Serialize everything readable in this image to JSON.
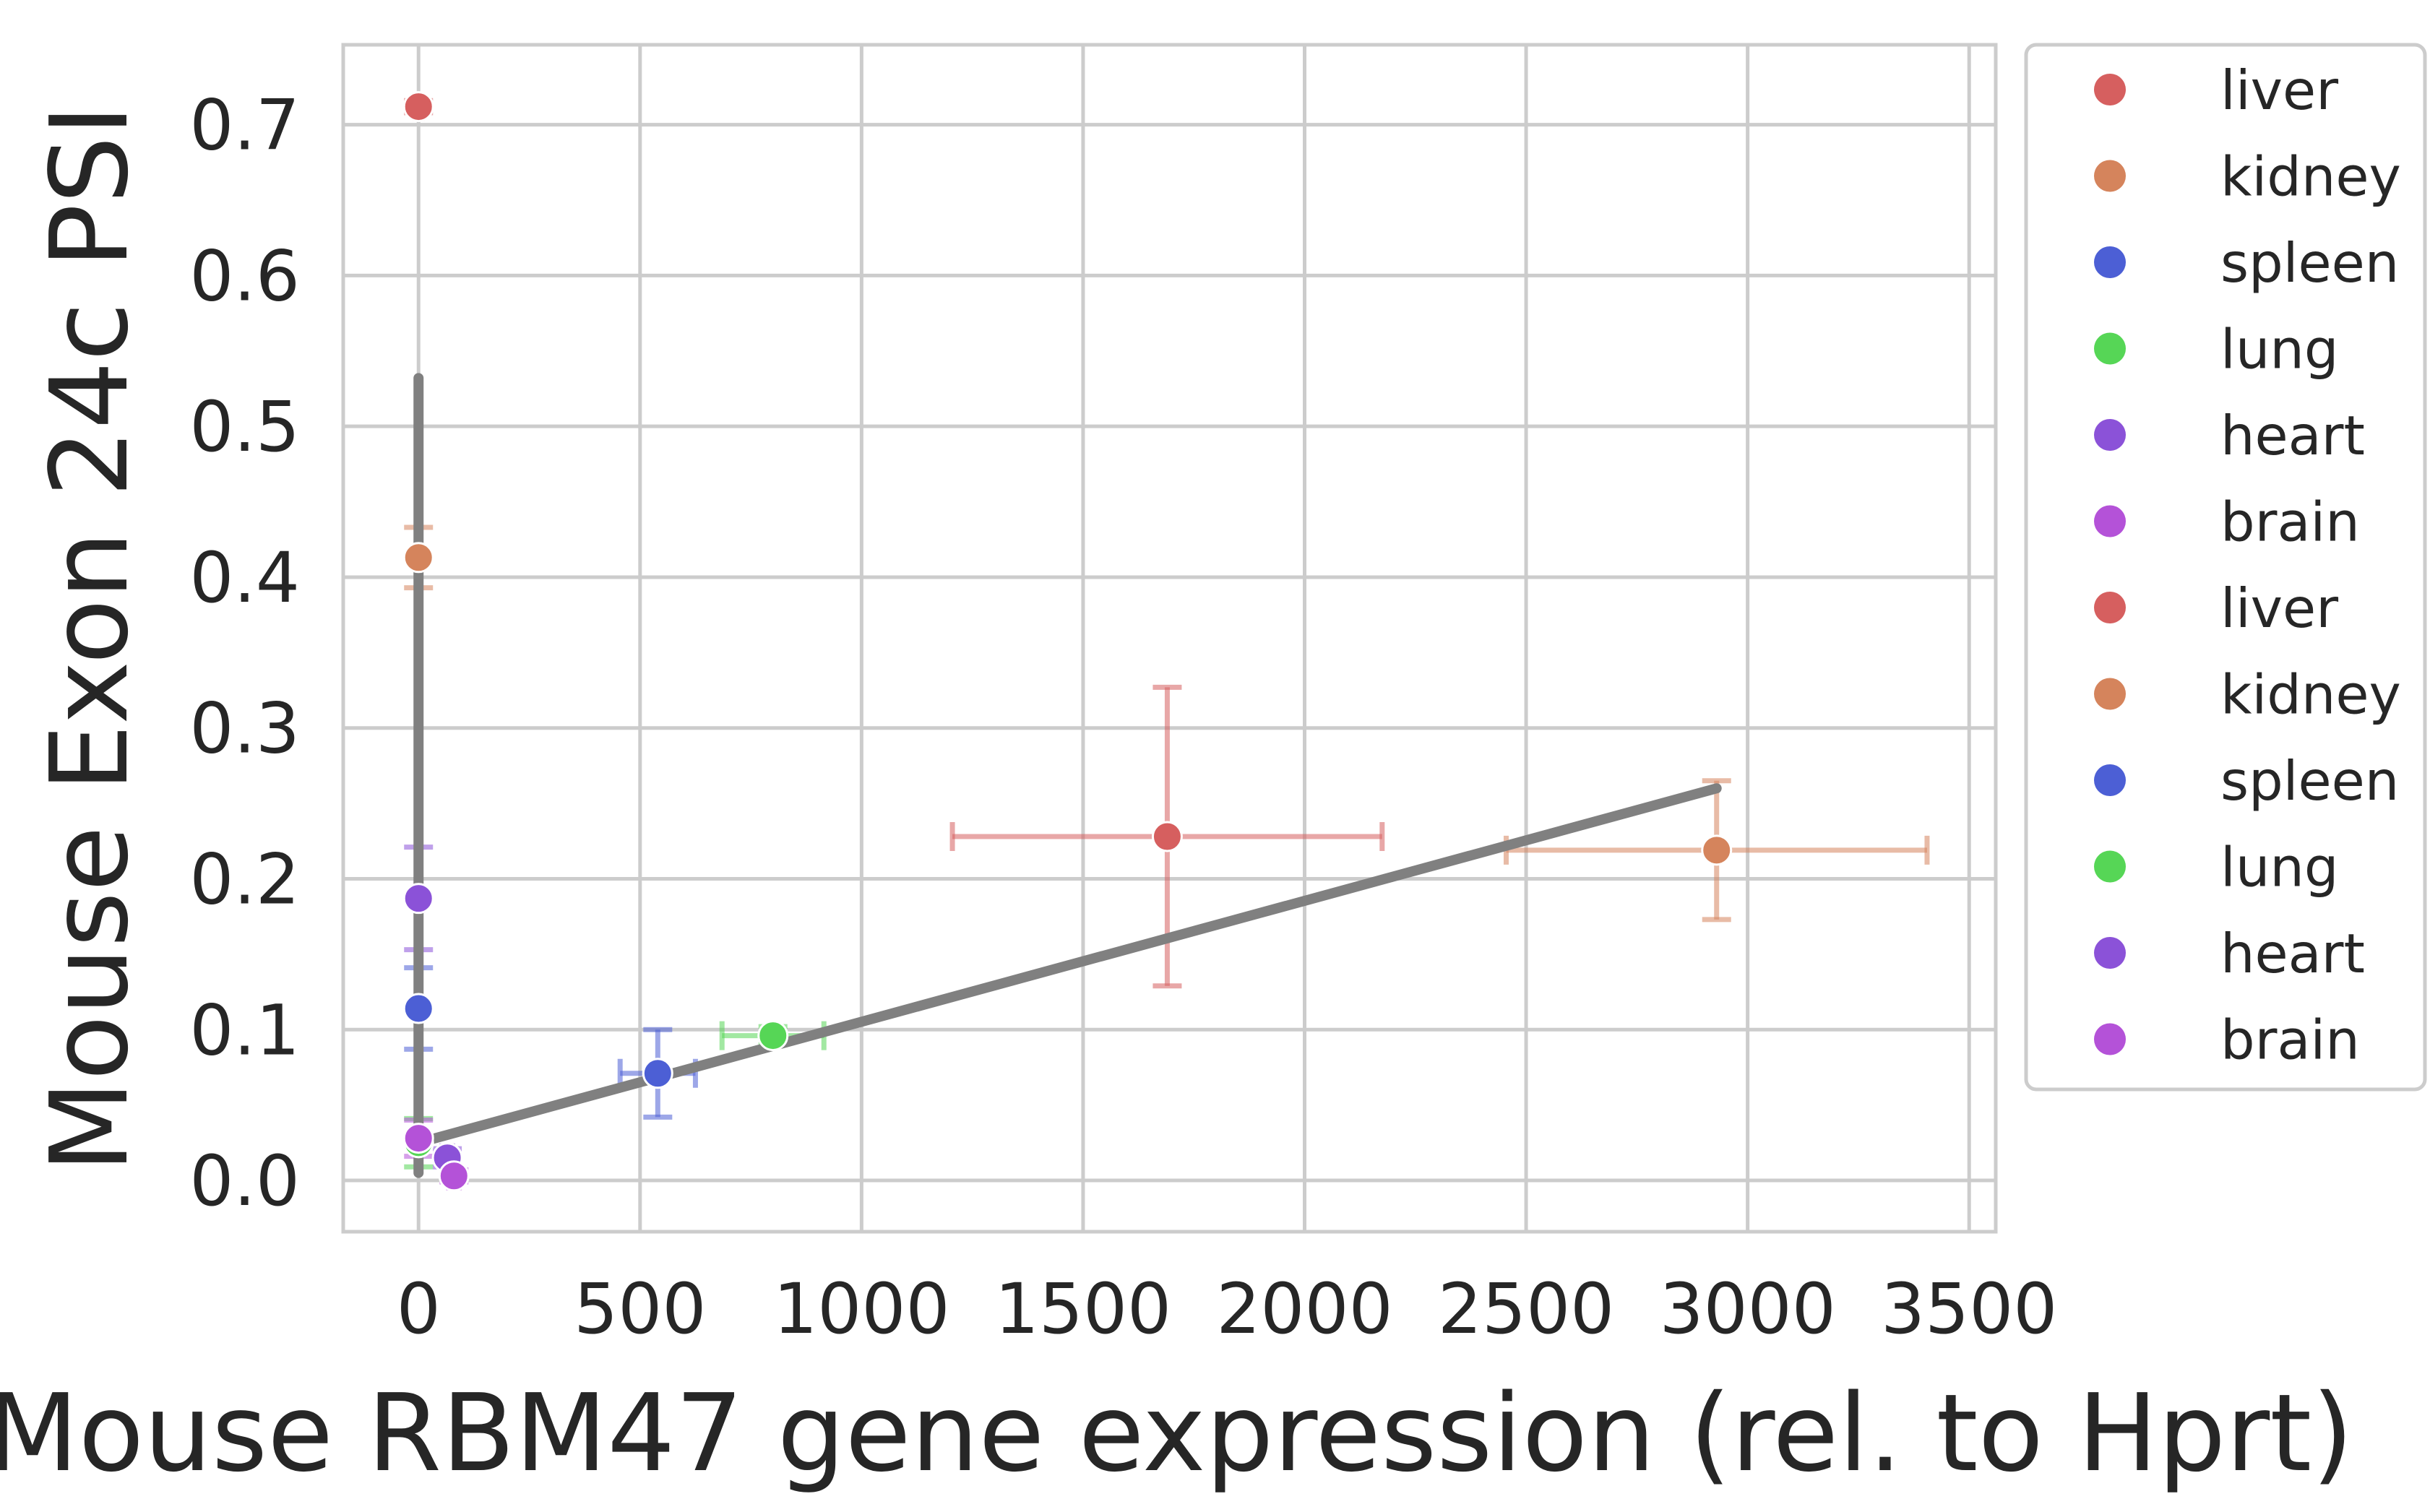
{
  "chart_data": {
    "type": "scatter",
    "title": "",
    "xlabel": "Mouse RBM47 gene expression (rel. to Hprt)",
    "ylabel": "Mouse Exon 24c PSI",
    "xlim": [
      -170,
      3560
    ],
    "ylim": [
      -0.034,
      0.753
    ],
    "xticks": [
      0,
      500,
      1000,
      1500,
      2000,
      2500,
      3000,
      3500
    ],
    "xtick_labels": [
      "0",
      "500",
      "1000",
      "1500",
      "2000",
      "2500",
      "3000",
      "3500"
    ],
    "yticks": [
      0.0,
      0.1,
      0.2,
      0.3,
      0.4,
      0.5,
      0.6,
      0.7
    ],
    "ytick_labels": [
      "0.0",
      "0.1",
      "0.2",
      "0.3",
      "0.4",
      "0.5",
      "0.6",
      "0.7"
    ],
    "grid": true,
    "legend_position": "outside right",
    "legend": [
      {
        "label": "liver",
        "color": "#d65f5f"
      },
      {
        "label": "kidney",
        "color": "#d5845c"
      },
      {
        "label": "spleen",
        "color": "#4c5fd5"
      },
      {
        "label": "lung",
        "color": "#56d656"
      },
      {
        "label": "heart",
        "color": "#8b52d8"
      },
      {
        "label": "brain",
        "color": "#b452d8"
      },
      {
        "label": "liver",
        "color": "#d65f5f"
      },
      {
        "label": "kidney",
        "color": "#d5845c"
      },
      {
        "label": "spleen",
        "color": "#4c5fd5"
      },
      {
        "label": "lung",
        "color": "#56d656"
      },
      {
        "label": "heart",
        "color": "#8b52d8"
      },
      {
        "label": "brain",
        "color": "#b452d8"
      }
    ],
    "points": [
      {
        "tissue": "liver",
        "color": "#d65f5f",
        "x": 0,
        "y": 0.712,
        "xerr": 8,
        "yerr": 0.004
      },
      {
        "tissue": "kidney",
        "color": "#d5845c",
        "x": 0,
        "y": 0.413,
        "xerr": 8,
        "yerr": 0.02
      },
      {
        "tissue": "spleen",
        "color": "#4c5fd5",
        "x": 0,
        "y": 0.114,
        "xerr": 8,
        "yerr": 0.027
      },
      {
        "tissue": "lung",
        "color": "#56d656",
        "x": 0,
        "y": 0.025,
        "xerr": 8,
        "yerr": 0.016
      },
      {
        "tissue": "heart",
        "color": "#8b52d8",
        "x": 0,
        "y": 0.187,
        "xerr": 8,
        "yerr": 0.034
      },
      {
        "tissue": "brain",
        "color": "#b452d8",
        "x": 0,
        "y": 0.028,
        "xerr": 8,
        "yerr": 0.012
      },
      {
        "tissue": "liver",
        "color": "#d65f5f",
        "x": 1690,
        "y": 0.228,
        "xerr": 485,
        "yerr": 0.099
      },
      {
        "tissue": "kidney",
        "color": "#d5845c",
        "x": 2930,
        "y": 0.219,
        "xerr": 475,
        "yerr": 0.046
      },
      {
        "tissue": "spleen",
        "color": "#4c5fd5",
        "x": 540,
        "y": 0.071,
        "xerr": 85,
        "yerr": 0.029
      },
      {
        "tissue": "lung",
        "color": "#56d656",
        "x": 800,
        "y": 0.096,
        "xerr": 115,
        "yerr": 0.006
      },
      {
        "tissue": "heart",
        "color": "#8b52d8",
        "x": 65,
        "y": 0.015,
        "xerr": 12,
        "yerr": 0.006
      },
      {
        "tissue": "brain",
        "color": "#b452d8",
        "x": 80,
        "y": 0.003,
        "xerr": 12,
        "yerr": 0.004
      }
    ],
    "fit_lines": [
      {
        "color": "#808080",
        "x": [
          0,
          0
        ],
        "y": [
          0.005,
          0.532
        ]
      },
      {
        "color": "#808080",
        "x": [
          0,
          2930
        ],
        "y": [
          0.025,
          0.26
        ]
      }
    ]
  }
}
